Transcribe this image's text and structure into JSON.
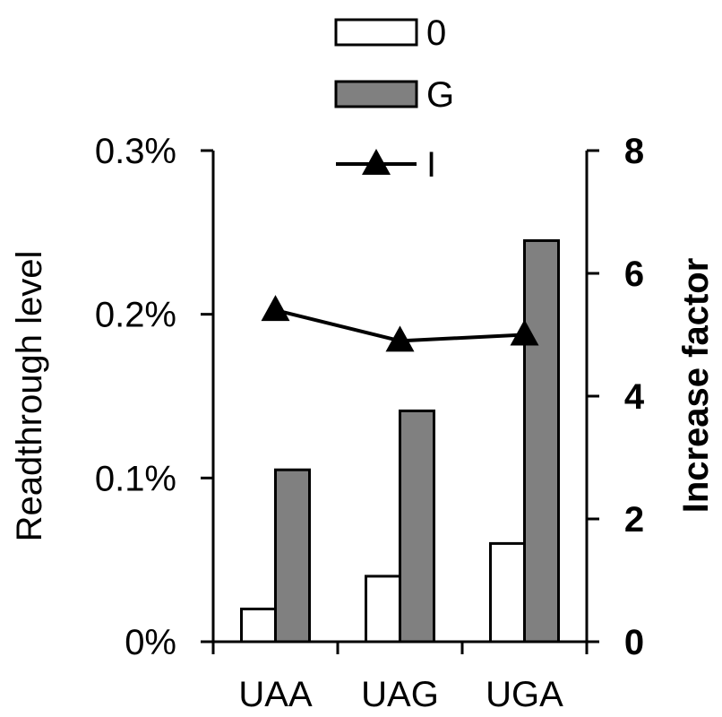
{
  "chart_data": {
    "type": "bar",
    "categories": [
      "UAA",
      "UAG",
      "UGA"
    ],
    "series": [
      {
        "name": "0",
        "axis": "left",
        "color": "#ffffff",
        "values": [
          0.02,
          0.04,
          0.06
        ]
      },
      {
        "name": "G",
        "axis": "left",
        "color": "#808080",
        "values": [
          0.105,
          0.141,
          0.245
        ]
      },
      {
        "name": "I",
        "axis": "right",
        "type": "line",
        "marker": "triangle",
        "color": "#000000",
        "values": [
          5.4,
          4.9,
          5.0
        ]
      }
    ],
    "ylabel": "Readthrough level",
    "ylabel_right": "Increase factor",
    "ylim": [
      0,
      0.3
    ],
    "ylim_right": [
      0,
      8
    ],
    "yticks": [
      {
        "value": 0,
        "label": "0%"
      },
      {
        "value": 0.1,
        "label": "0.1%"
      },
      {
        "value": 0.2,
        "label": "0.2%"
      },
      {
        "value": 0.3,
        "label": "0.3%"
      }
    ],
    "yticks_right": [
      {
        "value": 0,
        "label": "0"
      },
      {
        "value": 2,
        "label": "2"
      },
      {
        "value": 4,
        "label": "4"
      },
      {
        "value": 6,
        "label": "6"
      },
      {
        "value": 8,
        "label": "8"
      }
    ],
    "legend_position": "top-center",
    "grid": false
  }
}
